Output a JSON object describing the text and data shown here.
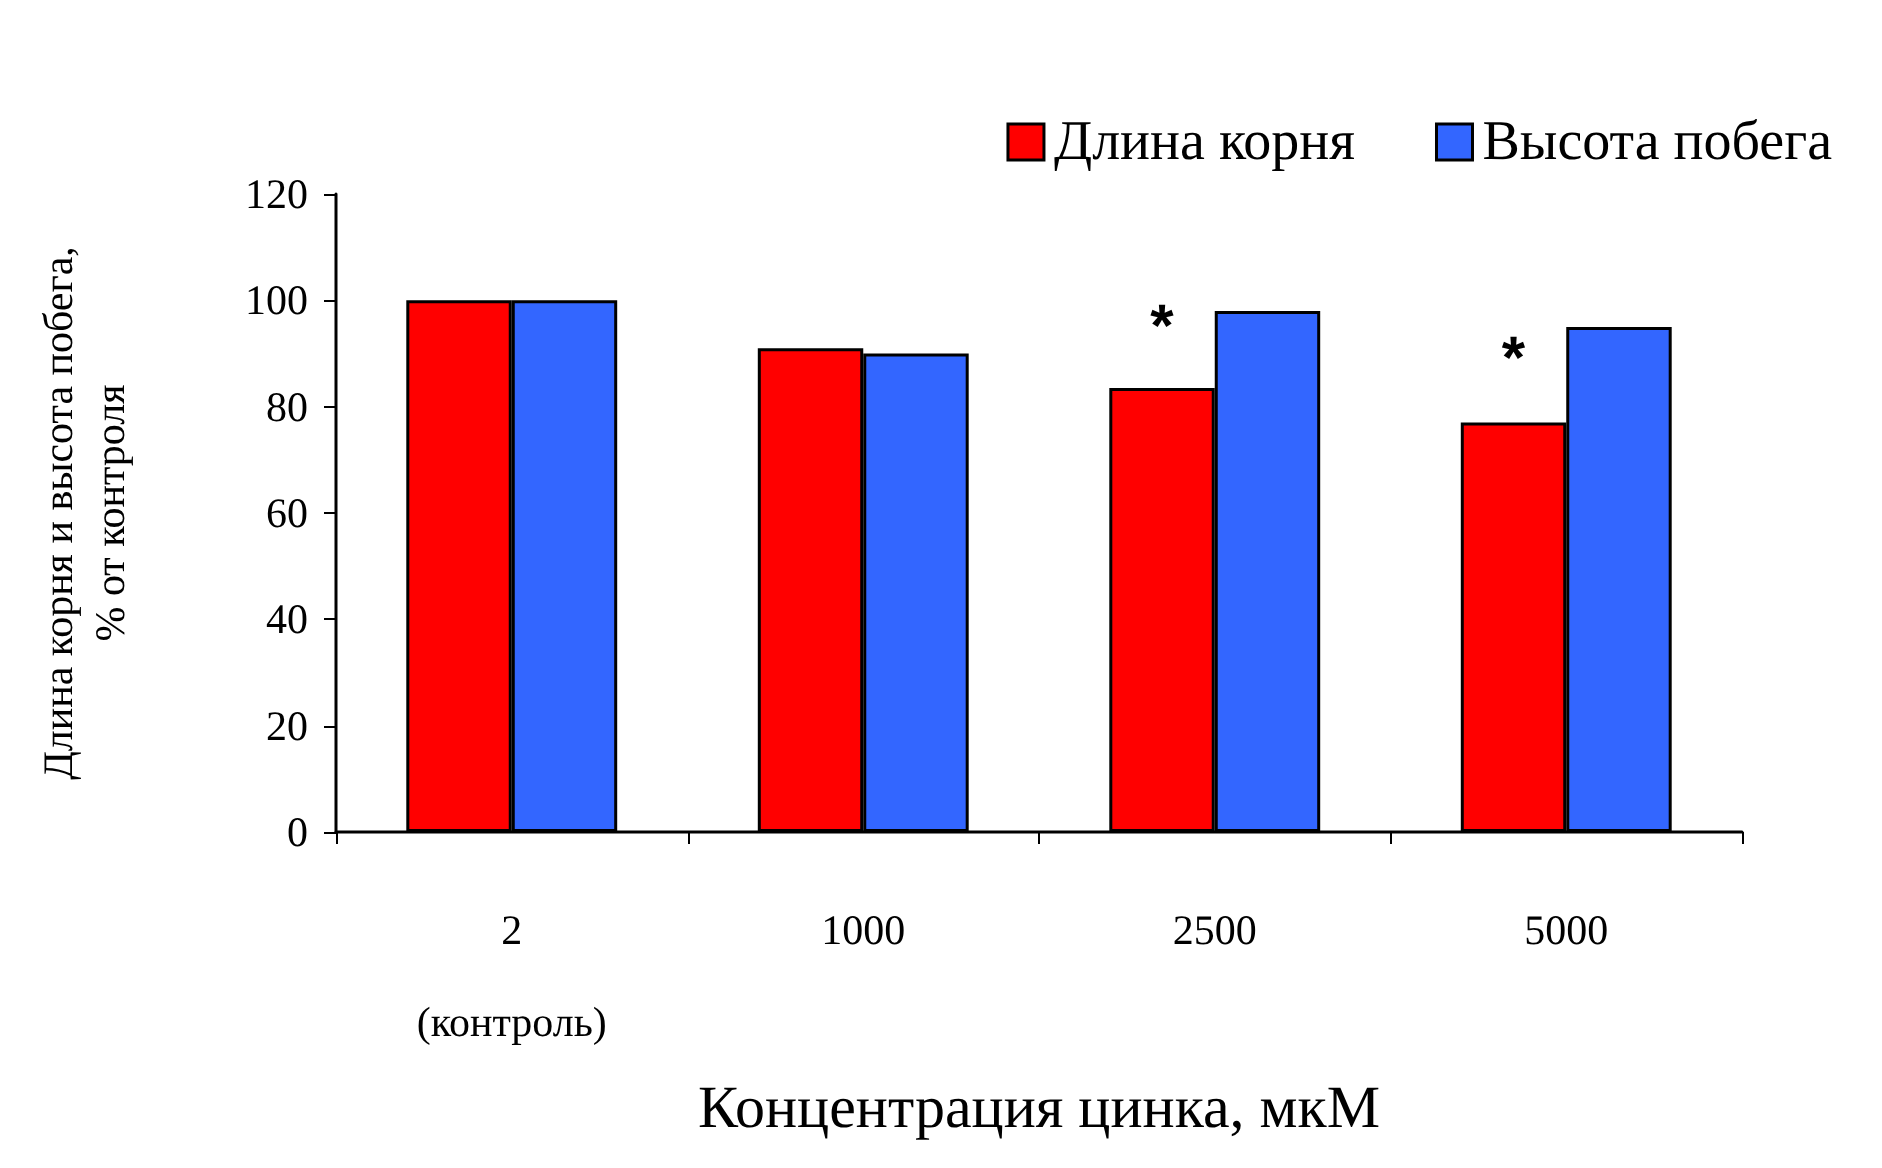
{
  "chart_data": {
    "type": "bar",
    "xlabel": "Концентрация цинка, мкМ",
    "ylabel": "Длина корня и высота побега,\n% от контроля",
    "categories": [
      "2\n(контроль)",
      "1000",
      "2500",
      "5000"
    ],
    "series": [
      {
        "name": "Длина корня",
        "color": "#ff0000",
        "values": [
          100,
          91,
          83.5,
          77
        ]
      },
      {
        "name": "Высота побега",
        "color": "#3366ff",
        "values": [
          100,
          90,
          98,
          95
        ]
      }
    ],
    "ylim": [
      0,
      120
    ],
    "yticks": [
      0,
      20,
      40,
      60,
      80,
      100,
      120
    ],
    "grid": false,
    "legend": "top right",
    "annotations": [
      {
        "text": "*",
        "x": "2500",
        "y": 95
      },
      {
        "text": "*",
        "x": "5000",
        "y": 89
      }
    ]
  }
}
